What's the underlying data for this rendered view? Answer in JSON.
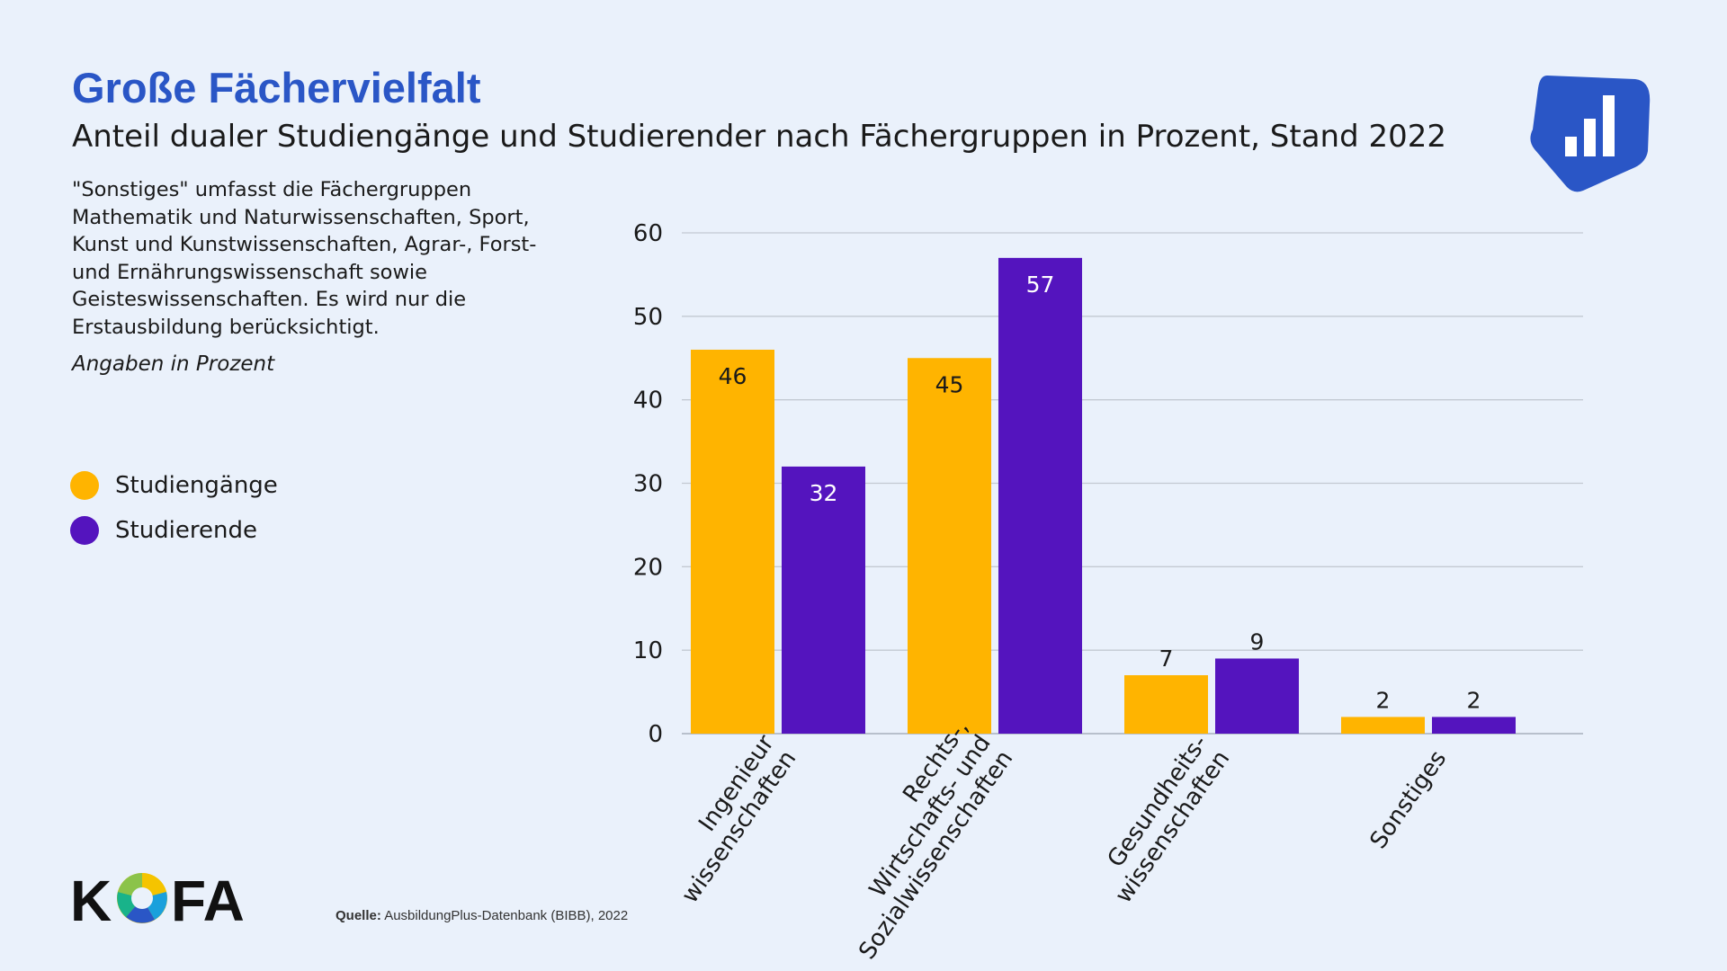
{
  "header": {
    "title": "Große Fächervielfalt",
    "subtitle": "Anteil dualer Studiengänge und Studierender nach Fächergruppen in Prozent, Stand 2022"
  },
  "note": "\"Sonstiges\" umfasst die Fächergruppen Mathematik und Naturwissenschaften, Sport, Kunst und Kunstwissenschaften, Agrar-, Forst- und Ernährungswissenschaft sowie Geisteswissenschaften. Es wird nur die Erstausbildung berücksichtigt.",
  "unit_note": "Angaben in Prozent",
  "legend": [
    {
      "label": "Studiengänge",
      "color": "#ffb400"
    },
    {
      "label": "Studierende",
      "color": "#5414be"
    }
  ],
  "source": {
    "label": "Quelle:",
    "text": "AusbildungPlus-Datenbank (BIBB), 2022"
  },
  "logo": {
    "text": "KOFA",
    "icon": "kofa-aperture-logo"
  },
  "badge": {
    "icon": "bar-chart-badge-icon"
  },
  "chart_data": {
    "type": "bar",
    "categories": [
      [
        "Ingenieur",
        "wissenschaften"
      ],
      [
        "Rechts-,",
        "Wirtschafts- und",
        "Sozialwissenschaften"
      ],
      [
        "Gesundheits-",
        "wissenschaften"
      ],
      [
        "Sonstiges"
      ]
    ],
    "series": [
      {
        "name": "Studiengänge",
        "values": [
          46,
          45,
          7,
          2
        ],
        "color": "#ffb400",
        "label_color": "#1a1a1a"
      },
      {
        "name": "Studierende",
        "values": [
          32,
          57,
          9,
          2
        ],
        "color": "#5414be",
        "label_color": "#ffffff"
      }
    ],
    "ylim": [
      0,
      60
    ],
    "yticks": [
      0,
      10,
      20,
      30,
      40,
      50,
      60
    ],
    "grid": true
  }
}
